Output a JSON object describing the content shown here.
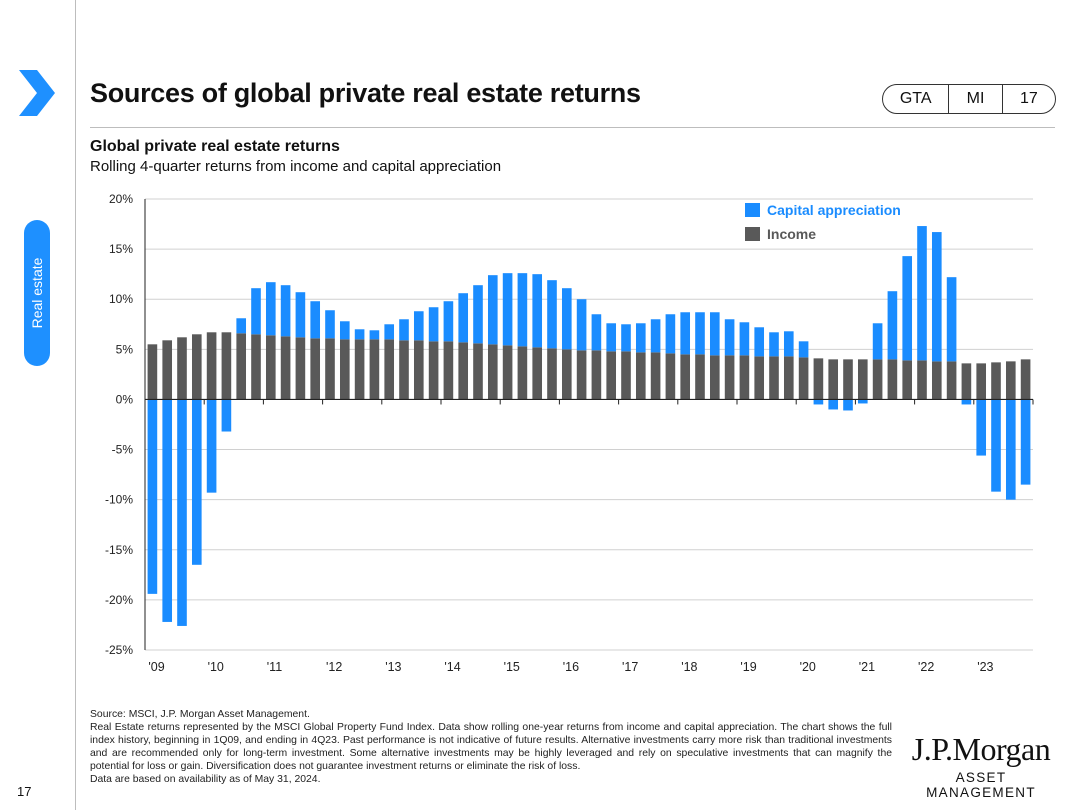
{
  "header": {
    "title": "Sources of global private real estate returns",
    "pill": [
      "GTA",
      "MI",
      "17"
    ]
  },
  "sidebar": {
    "section_label": "Real estate",
    "page_number": "17"
  },
  "chart_data": {
    "type": "bar",
    "stacked": true,
    "title": "Global private real estate returns",
    "subtitle": "Rolling 4-quarter returns from income and capital appreciation",
    "xlabel": "",
    "ylabel": "",
    "ylim": [
      -25,
      20
    ],
    "y_ticks": [
      "20%",
      "15%",
      "10%",
      "5%",
      "0%",
      "-5%",
      "-10%",
      "-15%",
      "-20%",
      "-25%"
    ],
    "y_tick_values": [
      20,
      15,
      10,
      5,
      0,
      -5,
      -10,
      -15,
      -20,
      -25
    ],
    "x_tick_labels": [
      "'09",
      "'10",
      "'11",
      "'12",
      "'13",
      "'14",
      "'15",
      "'16",
      "'17",
      "'18",
      "'19",
      "'20",
      "'21",
      "'22",
      "'23"
    ],
    "grid": true,
    "legend_position": "top-right",
    "categories": [
      "1Q09",
      "2Q09",
      "3Q09",
      "4Q09",
      "1Q10",
      "2Q10",
      "3Q10",
      "4Q10",
      "1Q11",
      "2Q11",
      "3Q11",
      "4Q11",
      "1Q12",
      "2Q12",
      "3Q12",
      "4Q12",
      "1Q13",
      "2Q13",
      "3Q13",
      "4Q13",
      "1Q14",
      "2Q14",
      "3Q14",
      "4Q14",
      "1Q15",
      "2Q15",
      "3Q15",
      "4Q15",
      "1Q16",
      "2Q16",
      "3Q16",
      "4Q16",
      "1Q17",
      "2Q17",
      "3Q17",
      "4Q17",
      "1Q18",
      "2Q18",
      "3Q18",
      "4Q18",
      "1Q19",
      "2Q19",
      "3Q19",
      "4Q19",
      "1Q20",
      "2Q20",
      "3Q20",
      "4Q20",
      "1Q21",
      "2Q21",
      "3Q21",
      "4Q21",
      "1Q22",
      "2Q22",
      "3Q22",
      "4Q22",
      "1Q23",
      "2Q23",
      "3Q23",
      "4Q23"
    ],
    "series": [
      {
        "name": "Income",
        "color": "#595959",
        "values": [
          5.5,
          5.9,
          6.2,
          6.5,
          6.7,
          6.7,
          6.6,
          6.5,
          6.4,
          6.3,
          6.2,
          6.1,
          6.1,
          6.0,
          6.0,
          6.0,
          6.0,
          5.9,
          5.9,
          5.8,
          5.8,
          5.7,
          5.6,
          5.5,
          5.4,
          5.3,
          5.2,
          5.1,
          5.0,
          4.9,
          4.9,
          4.8,
          4.8,
          4.7,
          4.7,
          4.6,
          4.5,
          4.5,
          4.4,
          4.4,
          4.4,
          4.3,
          4.3,
          4.3,
          4.2,
          4.1,
          4.0,
          4.0,
          4.0,
          4.0,
          4.0,
          3.9,
          3.9,
          3.8,
          3.8,
          3.6,
          3.6,
          3.7,
          3.8,
          4.0
        ]
      },
      {
        "name": "Capital appreciation",
        "color": "#1a8cff",
        "values": [
          -19.4,
          -22.2,
          -22.6,
          -16.5,
          -9.3,
          -3.2,
          1.5,
          4.6,
          5.3,
          5.1,
          4.5,
          3.7,
          2.8,
          1.8,
          1.0,
          0.9,
          1.5,
          2.1,
          2.9,
          3.4,
          4.0,
          4.9,
          5.8,
          6.9,
          7.2,
          7.3,
          7.3,
          6.8,
          6.1,
          5.1,
          3.6,
          2.8,
          2.7,
          2.9,
          3.3,
          3.9,
          4.2,
          4.2,
          4.3,
          3.6,
          3.3,
          2.9,
          2.4,
          2.5,
          1.6,
          -0.5,
          -1.0,
          -1.1,
          -0.4,
          3.6,
          6.8,
          10.4,
          13.4,
          12.9,
          8.4,
          -0.5,
          -5.6,
          -9.2,
          -10.0,
          -8.5
        ]
      }
    ]
  },
  "footnotes": {
    "source": "Source: MSCI, J.P. Morgan Asset Management.",
    "body": "Real Estate returns represented by the MSCI Global Property Fund Index. Data show rolling one-year returns from income and capital appreciation. The chart shows the full index history, beginning in 1Q09, and ending in 4Q23. Past performance is not indicative of future results. Alternative investments carry more risk than traditional investments and are recommended only for long-term investment. Some alternative investments may be highly leveraged and rely on speculative investments that can magnify the potential for loss or gain. Diversification does not guarantee investment returns or eliminate the risk of loss.",
    "availability": "Data are based on availability as of May 31, 2024."
  },
  "logo": {
    "brand": "J.P.Morgan",
    "sub": "ASSET MANAGEMENT"
  }
}
